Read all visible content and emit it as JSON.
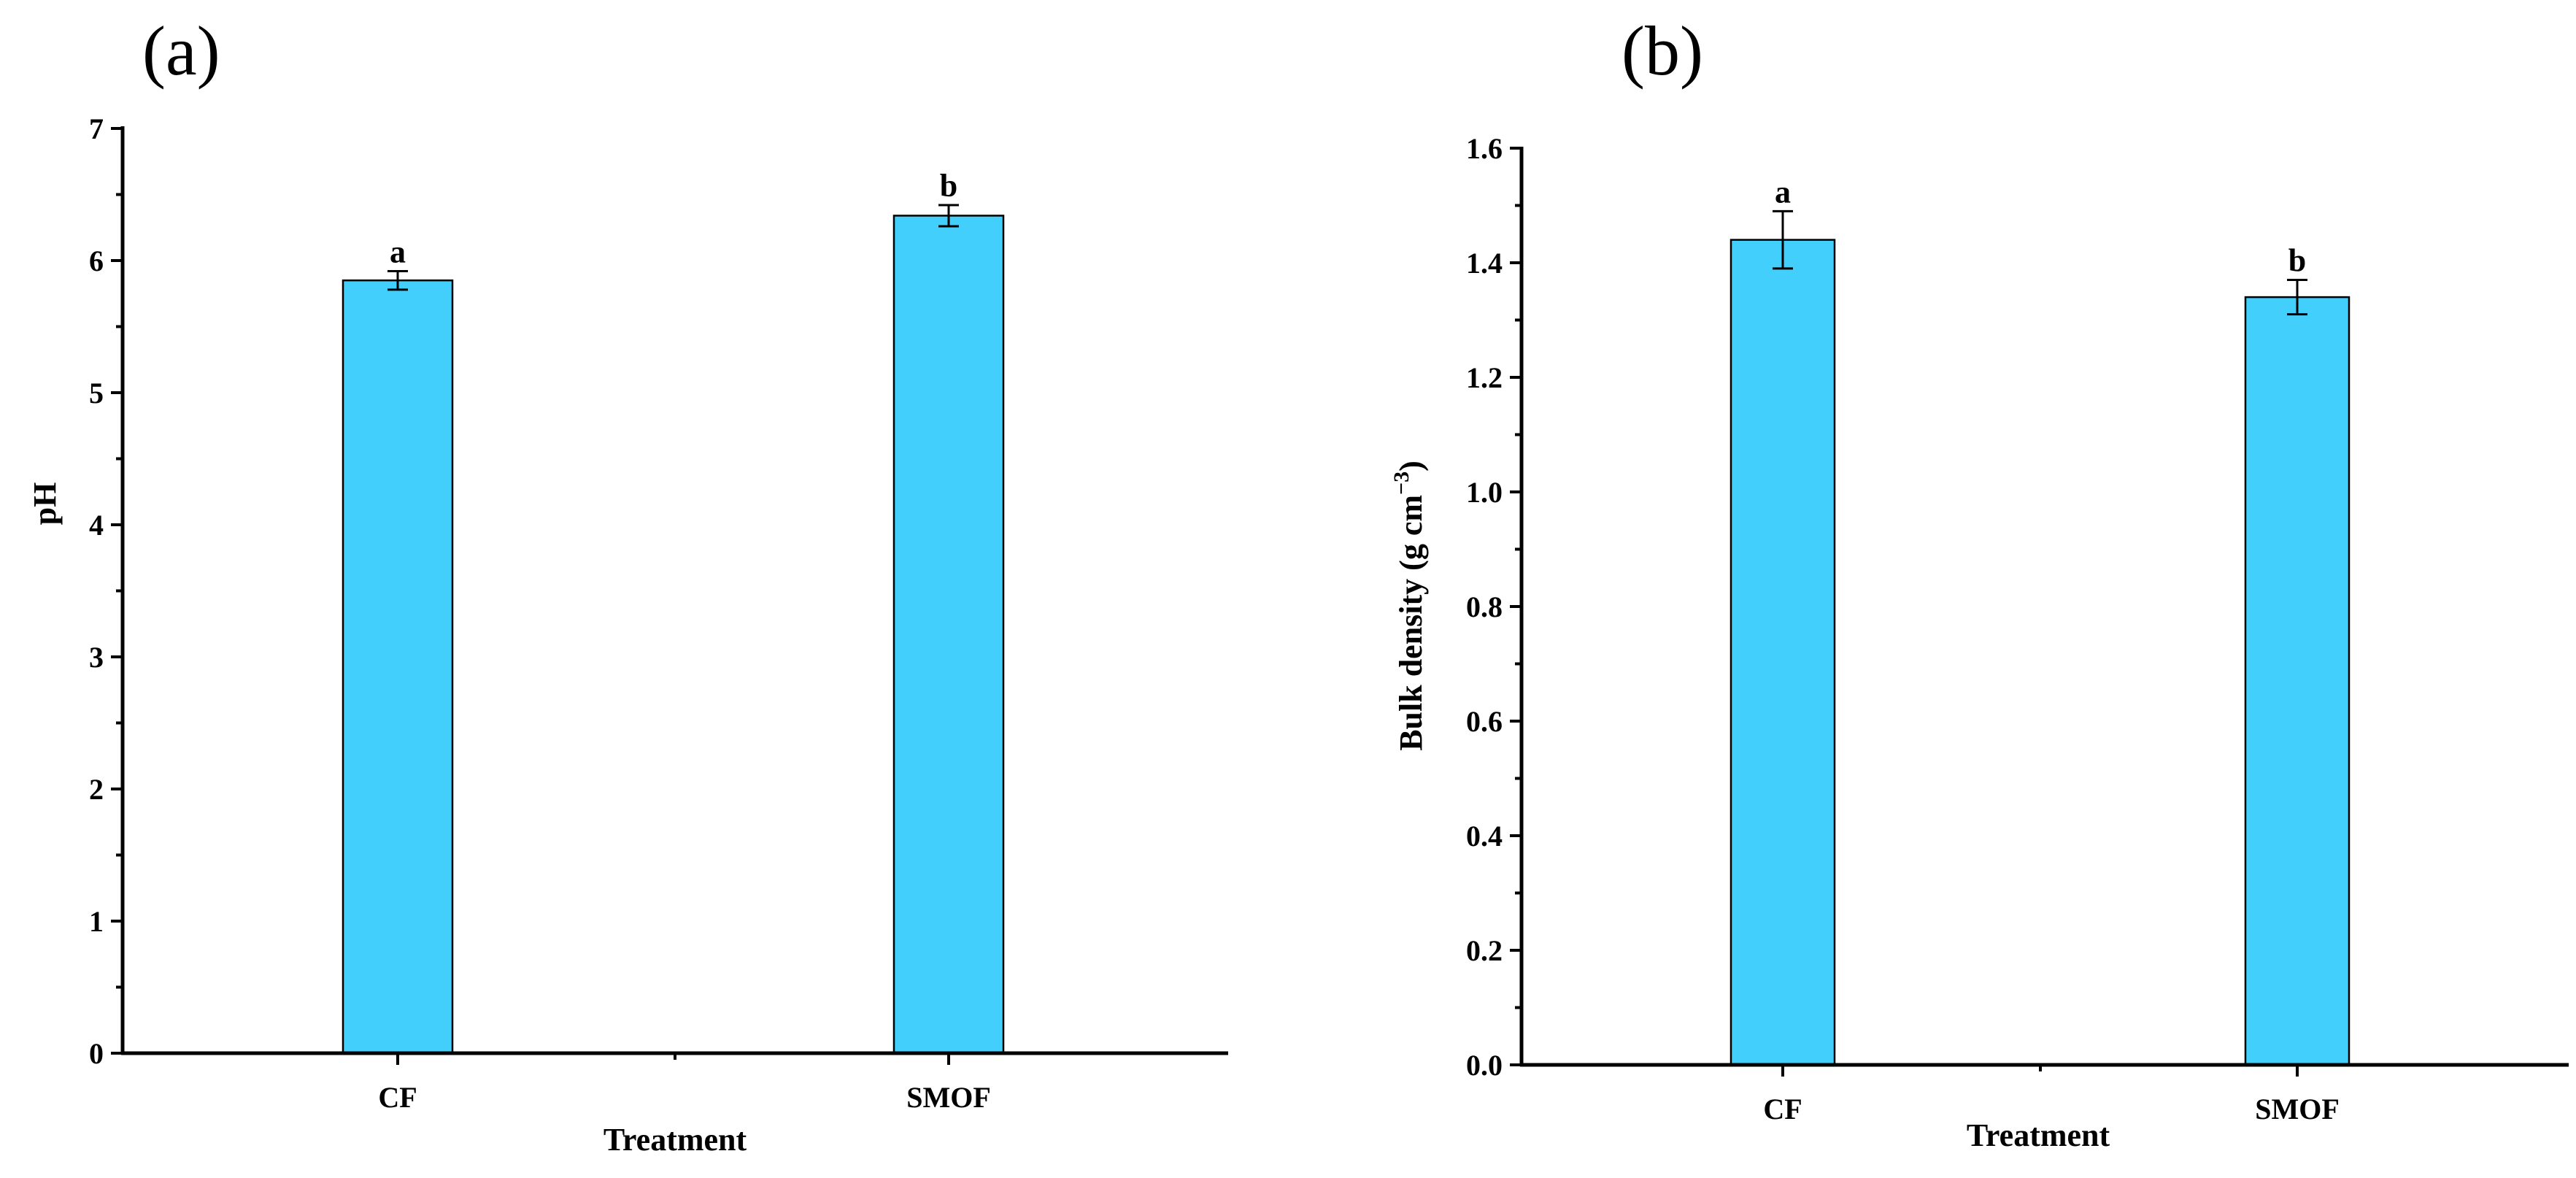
{
  "colors": {
    "bar_fill": "#42CFFB",
    "axis": "#000000"
  },
  "chart_data": [
    {
      "type": "bar",
      "panel": "(a)",
      "title": "",
      "categories": [
        "CF",
        "SMOF"
      ],
      "values": [
        5.85,
        6.34
      ],
      "errors": [
        0.07,
        0.08
      ],
      "significance": [
        "a",
        "b"
      ],
      "xlabel": "Treatment",
      "ylabel": "pH",
      "ylim": [
        0,
        7
      ],
      "yticks": [
        0,
        1,
        2,
        3,
        4,
        5,
        6,
        7
      ],
      "ytick_labels": [
        "0",
        "1",
        "2",
        "3",
        "4",
        "5",
        "6",
        "7"
      ],
      "grid": false,
      "legend": "none"
    },
    {
      "type": "bar",
      "panel": "(b)",
      "title": "",
      "categories": [
        "CF",
        "SMOF"
      ],
      "values": [
        1.44,
        1.34
      ],
      "errors": [
        0.05,
        0.03
      ],
      "significance": [
        "a",
        "b"
      ],
      "xlabel": "Treatment",
      "ylabel": "Bulk density (g cm",
      "ylabel_superscript": "−3",
      "ylabel_suffix": ")",
      "ylim": [
        0,
        1.6
      ],
      "yticks": [
        0,
        0.2,
        0.4,
        0.6,
        0.8,
        1.0,
        1.2,
        1.4,
        1.6
      ],
      "ytick_labels": [
        "0.0",
        "0.2",
        "0.4",
        "0.6",
        "0.8",
        "1.0",
        "1.2",
        "1.4",
        "1.6"
      ],
      "grid": false,
      "legend": "none"
    }
  ]
}
